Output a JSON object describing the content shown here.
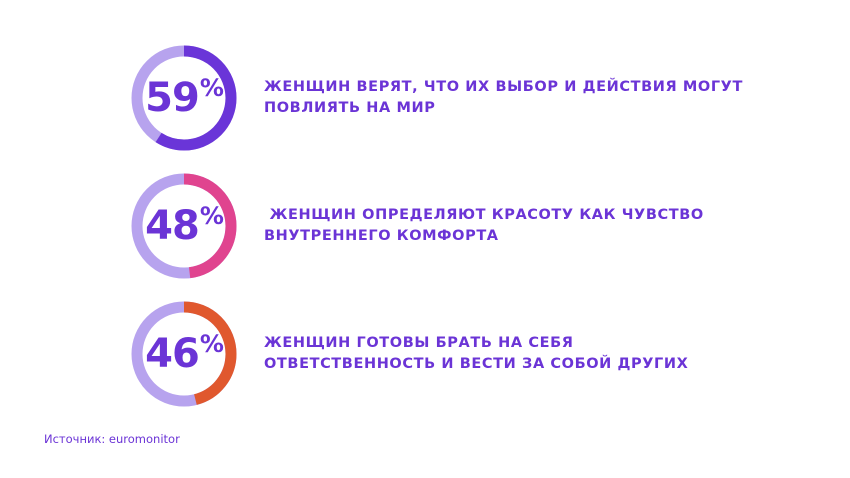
{
  "chart_data": {
    "type": "donut",
    "items": [
      {
        "value": 59,
        "label_number": "59",
        "label_percent": "%",
        "line1": "ЖЕНЩИН ВЕРЯТ, ЧТО ИХ ВЫБОР И ДЕЙСТВИЯ МОГУТ",
        "line2": "ПОВЛИЯТЬ НА МИР",
        "color": "#6a35d8"
      },
      {
        "value": 48,
        "label_number": "48",
        "label_percent": "%",
        "line1": " ЖЕНЩИН ОПРЕДЕЛЯЮТ КРАСОТУ КАК ЧУВСТВО",
        "line2": "ВНУТРЕННЕГО КОМФОРТА",
        "color": "#e0448f"
      },
      {
        "value": 46,
        "label_number": "46",
        "label_percent": "%",
        "line1": "ЖЕНЩИН ГОТОВЫ БРАТЬ НА СЕБЯ",
        "line2": "ОТВЕТСТВЕННОСТЬ И ВЕСТИ ЗА СОБОЙ ДРУГИХ",
        "color": "#e0582e"
      }
    ],
    "track_color": "#b7a3ee",
    "text_color": "#6b34d6"
  },
  "source": "Источник: euromonitor"
}
